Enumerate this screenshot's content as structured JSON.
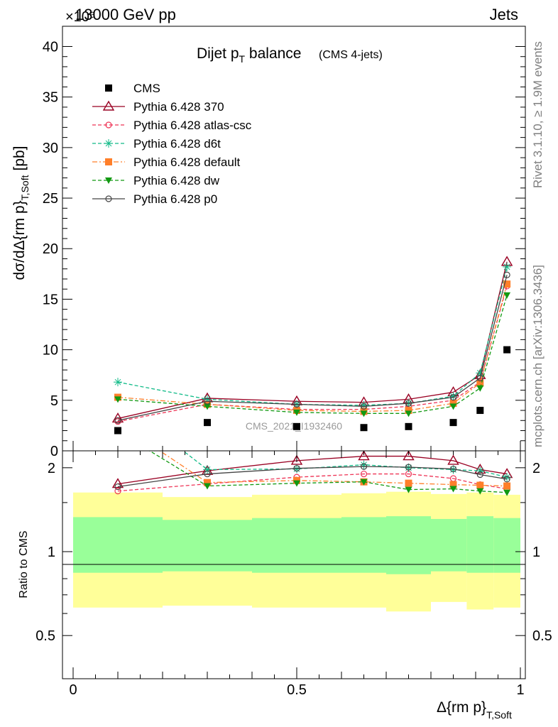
{
  "header": {
    "beam": "13000 GeV pp",
    "process": "Jets",
    "multiplier": "×10⁶"
  },
  "side_text": {
    "rivet": "Rivet 3.1.10, ≥ 1.9M events",
    "mcplots": "mcplots.cern.ch [arXiv:1306.3436]"
  },
  "title": {
    "main": "Dijet p",
    "main_sub": "T",
    "main_tail": " balance",
    "small": "(CMS 4-jets)"
  },
  "analysis_id": "CMS_2021_I1932460",
  "chart_data": [
    {
      "type": "line",
      "panel": "main",
      "ylabel": "dσ/dΔ{rm p}",
      "ylabel_sub": "T,Soft",
      "ylabel_unit": "[pb]",
      "y_multiplier": "×10⁶",
      "xlim": [
        0,
        1
      ],
      "ylim": [
        0,
        42
      ],
      "y_ticks": [
        "0",
        "5",
        "10",
        "15",
        "20",
        "25",
        "30",
        "35",
        "40"
      ],
      "x": [
        0.1,
        0.3,
        0.5,
        0.65,
        0.75,
        0.85,
        0.91,
        0.97
      ],
      "series": [
        {
          "name": "CMS",
          "color": "#000000",
          "marker": "square",
          "dash": "none",
          "values": [
            2.0,
            2.8,
            2.4,
            2.3,
            2.4,
            2.8,
            4.0,
            10.0
          ]
        },
        {
          "name": "Pythia 6.428 370",
          "color": "#990022",
          "marker": "triangle-open",
          "dash": "solid",
          "values": [
            3.2,
            5.2,
            4.9,
            4.8,
            5.1,
            5.8,
            7.5,
            18.7
          ]
        },
        {
          "name": "Pythia 6.428 atlas-csc",
          "color": "#ee3355",
          "marker": "circle-open",
          "dash": "dashed",
          "values": [
            2.9,
            4.6,
            4.1,
            4.1,
            4.4,
            5.0,
            6.8,
            16.3
          ]
        },
        {
          "name": "Pythia 6.428 d6t",
          "color": "#11bb88",
          "marker": "asterisk",
          "dash": "dashed",
          "values": [
            6.8,
            5.1,
            4.6,
            4.5,
            4.7,
            5.4,
            7.7,
            18.2
          ]
        },
        {
          "name": "Pythia 6.428 default",
          "color": "#ff7f2a",
          "marker": "square",
          "dash": "dashdot",
          "values": [
            5.3,
            4.6,
            4.0,
            3.9,
            4.0,
            4.7,
            6.7,
            16.5
          ]
        },
        {
          "name": "Pythia 6.428 dw",
          "color": "#119911",
          "marker": "triangle-down",
          "dash": "dashed",
          "values": [
            5.1,
            4.4,
            3.8,
            3.7,
            3.7,
            4.4,
            6.2,
            15.4
          ]
        },
        {
          "name": "Pythia 6.428 p0",
          "color": "#444444",
          "marker": "circle-open",
          "dash": "solid",
          "values": [
            3.0,
            4.9,
            4.6,
            4.4,
            4.7,
            5.3,
            7.2,
            17.4
          ]
        }
      ]
    },
    {
      "type": "line",
      "panel": "ratio",
      "ylabel": "Ratio to CMS",
      "xlabel": "Δ{rm p}",
      "xlabel_sub": "T,Soft",
      "xlim": [
        0,
        1
      ],
      "ylim": [
        0.35,
        2.3
      ],
      "x_ticks": [
        "0",
        "0.5",
        "1"
      ],
      "y_ticks": [
        "0.5",
        "1",
        "2"
      ],
      "bands": {
        "x_edges": [
          0.0,
          0.2,
          0.4,
          0.6,
          0.7,
          0.8,
          0.88,
          0.94,
          1.0
        ],
        "yellow_low": [
          0.63,
          0.64,
          0.63,
          0.63,
          0.61,
          0.66,
          0.62,
          0.63
        ],
        "yellow_high": [
          1.63,
          1.57,
          1.6,
          1.62,
          1.64,
          1.61,
          1.63,
          1.6
        ],
        "green_low": [
          0.84,
          0.85,
          0.84,
          0.84,
          0.83,
          0.85,
          0.84,
          0.84
        ],
        "green_high": [
          1.33,
          1.3,
          1.32,
          1.33,
          1.34,
          1.31,
          1.34,
          1.32
        ],
        "yellow_color": "#ffff99",
        "green_color": "#99ff99"
      },
      "series": [
        {
          "name": "Pythia 6.428 370",
          "values": [
            1.75,
            1.95,
            2.12,
            2.2,
            2.2,
            2.12,
            1.97,
            1.9
          ]
        },
        {
          "name": "Pythia 6.428 atlas-csc",
          "values": [
            1.65,
            1.75,
            1.85,
            1.9,
            1.9,
            1.83,
            1.74,
            1.68
          ]
        },
        {
          "name": "Pythia 6.428 d6t",
          "values": [
            3.5,
            1.97,
            1.98,
            2.05,
            2.0,
            1.97,
            1.95,
            1.85
          ]
        },
        {
          "name": "Pythia 6.428 default",
          "values": [
            2.9,
            1.77,
            1.8,
            1.78,
            1.76,
            1.74,
            1.73,
            1.72
          ]
        },
        {
          "name": "Pythia 6.428 dw",
          "values": [
            2.7,
            1.72,
            1.76,
            1.78,
            1.67,
            1.68,
            1.65,
            1.63
          ]
        },
        {
          "name": "Pythia 6.428 p0",
          "values": [
            1.71,
            1.9,
            1.99,
            2.02,
            2.01,
            1.98,
            1.89,
            1.82
          ]
        }
      ]
    }
  ]
}
